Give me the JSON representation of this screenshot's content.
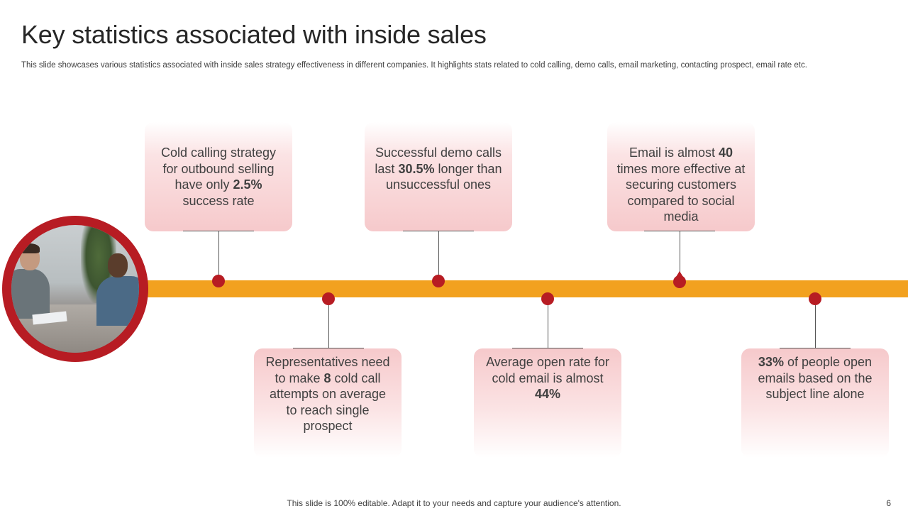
{
  "slide": {
    "title": "Key statistics associated with inside sales",
    "subtitle": "This slide showcases various statistics associated with inside sales strategy effectiveness in different companies. It highlights stats related to cold calling, demo calls, email marketing, contacting prospect, email rate etc.",
    "footer": "This slide is 100% editable. Adapt it to your needs and capture your audience's attention.",
    "page_number": "6"
  },
  "colors": {
    "timeline": "#f2a11f",
    "accent_red": "#b71c23",
    "card_pink": "#f6c9cb",
    "text": "#404040"
  },
  "photo": {
    "icon": "business-meeting-photo"
  },
  "stats": [
    {
      "pre": "Cold calling strategy for outbound selling have only ",
      "bold": "2.5%",
      "post": " success rate"
    },
    {
      "pre": "Representatives need to make ",
      "bold": "8",
      "post": " cold call attempts on average to reach single prospect"
    },
    {
      "pre": "Successful demo calls last ",
      "bold": "30.5%",
      "post": " longer than unsuccessful ones"
    },
    {
      "pre": "Average open rate for cold email is almost ",
      "bold": "44%",
      "post": ""
    },
    {
      "pre": "Email is almost ",
      "bold": "40",
      "post": " times more effective at securing customers compared to social media"
    },
    {
      "pre": "",
      "bold": "33%",
      "post": " of people open emails based on the subject line alone"
    }
  ]
}
